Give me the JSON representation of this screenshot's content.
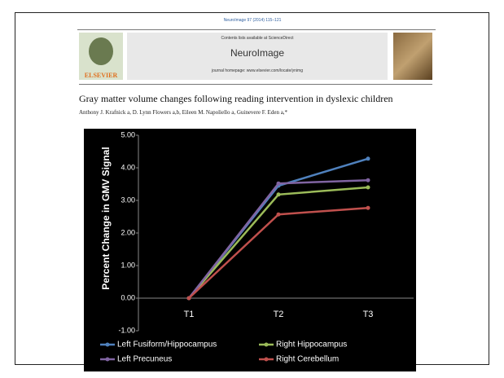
{
  "header": {
    "citation": "NeuroImage 97 (2014) 115–121",
    "contents": "Contents lists available at ScienceDirect",
    "journal": "NeuroImage",
    "homepage": "journal homepage: www.elsevier.com/locate/ynimg",
    "publisher": "ELSEVIER"
  },
  "article": {
    "title": "Gray matter volume changes following reading intervention in dyslexic children",
    "authors": "Anthony J. Krafnick a, D. Lynn Flowers a,b, Eileen M. Napoliello a, Guinevere F. Eden a,*"
  },
  "chart_data": {
    "type": "line",
    "ylabel": "Percent Change in GMV Signal",
    "categories": [
      "T1",
      "T2",
      "T3"
    ],
    "series": [
      {
        "name": "Left Fusiform/Hippocampus",
        "color": "#4f81bd",
        "values": [
          0,
          3.45,
          4.28
        ]
      },
      {
        "name": "Right Hippocampus",
        "color": "#9bbb59",
        "values": [
          0,
          3.18,
          3.4
        ]
      },
      {
        "name": "Left Precuneus",
        "color": "#8064a2",
        "values": [
          0,
          3.52,
          3.62
        ]
      },
      {
        "name": "Right Cerebellum",
        "color": "#c0504d",
        "values": [
          0,
          2.57,
          2.77
        ]
      }
    ],
    "ylim": [
      -1,
      5
    ],
    "yticks": [
      {
        "value": -1,
        "label": "-1.00"
      },
      {
        "value": 0,
        "label": "0.00"
      },
      {
        "value": 1,
        "label": "1.00"
      },
      {
        "value": 2,
        "label": "2.00"
      },
      {
        "value": 3,
        "label": "3.00"
      },
      {
        "value": 4,
        "label": "4.00"
      },
      {
        "value": 5,
        "label": "5.00"
      }
    ],
    "legend": "bottom",
    "grid": false
  }
}
